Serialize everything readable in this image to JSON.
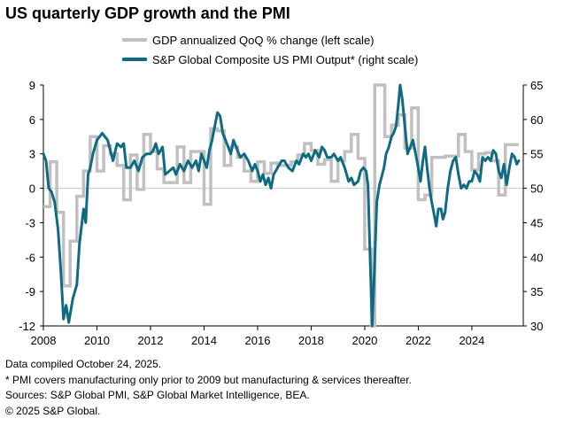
{
  "header": {
    "title": "US quarterly GDP growth and the PMI"
  },
  "footer": {
    "line1": "Data compiled October 24, 2025.",
    "line2": "* PMI covers manufacturing only prior to 2009 but manufacturing & services thereafter.",
    "line3": "Sources: S&P Global PMI, S&P Global Market Intelligence, BEA.",
    "line4": "© 2025 S&P Global."
  },
  "colors": {
    "gdp": "#c0c0c0",
    "pmi": "#0f6b82",
    "axis": "#000000",
    "zero": "#c8c8c8"
  },
  "chart_data": {
    "type": "line",
    "title": "US quarterly GDP growth and the PMI",
    "legend_position": "top",
    "grid": false,
    "x_ticks": [
      "2008",
      "2010",
      "2012",
      "2014",
      "2016",
      "2018",
      "2020",
      "2022",
      "2024"
    ],
    "xlim": [
      2008.0,
      2025.92
    ],
    "y_left": {
      "ticks": [
        "9",
        "6",
        "3",
        "0",
        "-3",
        "-6",
        "-9",
        "-12"
      ],
      "lim": [
        -12,
        9
      ]
    },
    "y_right": {
      "ticks": [
        "65",
        "60",
        "55",
        "50",
        "45",
        "40",
        "35",
        "30"
      ],
      "lim": [
        30,
        65
      ]
    },
    "series": [
      {
        "name": "GDP annualized QoQ % change (left scale)",
        "axis": "left",
        "style": "step",
        "points": [
          [
            2008.0,
            -1.6
          ],
          [
            2008.25,
            2.3
          ],
          [
            2008.5,
            -2.1
          ],
          [
            2008.75,
            -8.5
          ],
          [
            2009.0,
            -4.6
          ],
          [
            2009.25,
            -0.7
          ],
          [
            2009.5,
            1.5
          ],
          [
            2009.75,
            4.5
          ],
          [
            2010.0,
            1.5
          ],
          [
            2010.25,
            3.7
          ],
          [
            2010.5,
            3.0
          ],
          [
            2010.75,
            2.0
          ],
          [
            2011.0,
            -1.0
          ],
          [
            2011.25,
            2.9
          ],
          [
            2011.5,
            -0.1
          ],
          [
            2011.75,
            4.7
          ],
          [
            2012.0,
            3.2
          ],
          [
            2012.25,
            1.7
          ],
          [
            2012.5,
            0.5
          ],
          [
            2012.75,
            0.5
          ],
          [
            2013.0,
            3.6
          ],
          [
            2013.25,
            0.5
          ],
          [
            2013.5,
            3.2
          ],
          [
            2013.75,
            3.2
          ],
          [
            2014.0,
            -1.4
          ],
          [
            2014.25,
            5.2
          ],
          [
            2014.5,
            5.0
          ],
          [
            2014.75,
            2.0
          ],
          [
            2015.0,
            3.6
          ],
          [
            2015.25,
            2.7
          ],
          [
            2015.5,
            1.5
          ],
          [
            2015.75,
            0.6
          ],
          [
            2016.0,
            2.3
          ],
          [
            2016.25,
            1.3
          ],
          [
            2016.5,
            2.2
          ],
          [
            2016.75,
            2.0
          ],
          [
            2017.0,
            2.0
          ],
          [
            2017.25,
            2.3
          ],
          [
            2017.5,
            2.9
          ],
          [
            2017.75,
            3.9
          ],
          [
            2018.0,
            3.3
          ],
          [
            2018.25,
            2.1
          ],
          [
            2018.5,
            2.5
          ],
          [
            2018.75,
            0.6
          ],
          [
            2019.0,
            2.4
          ],
          [
            2019.25,
            3.2
          ],
          [
            2019.5,
            4.7
          ],
          [
            2019.75,
            2.6
          ],
          [
            2020.0,
            -5.3
          ],
          [
            2020.25,
            -12.0
          ],
          [
            2020.375,
            9.0
          ],
          [
            2020.5,
            9.0
          ],
          [
            2020.75,
            4.5
          ],
          [
            2021.0,
            5.5
          ],
          [
            2021.25,
            6.4
          ],
          [
            2021.5,
            3.5
          ],
          [
            2021.75,
            7.0
          ],
          [
            2022.0,
            -1.0
          ],
          [
            2022.25,
            -0.6
          ],
          [
            2022.5,
            2.7
          ],
          [
            2022.75,
            2.7
          ],
          [
            2023.0,
            2.8
          ],
          [
            2023.25,
            2.8
          ],
          [
            2023.5,
            4.7
          ],
          [
            2023.75,
            3.2
          ],
          [
            2024.0,
            1.6
          ],
          [
            2024.25,
            3.0
          ],
          [
            2024.5,
            3.1
          ],
          [
            2024.75,
            2.4
          ],
          [
            2025.0,
            -0.6
          ],
          [
            2025.25,
            3.8
          ],
          [
            2025.5,
            3.8
          ]
        ]
      },
      {
        "name": "S&P Global Composite US PMI Output* (right scale)",
        "axis": "right",
        "style": "line",
        "points": [
          [
            2008.0,
            55.0
          ],
          [
            2008.1,
            54.0
          ],
          [
            2008.2,
            50.0
          ],
          [
            2008.3,
            49.5
          ],
          [
            2008.42,
            48.0
          ],
          [
            2008.55,
            44.0
          ],
          [
            2008.65,
            38.0
          ],
          [
            2008.75,
            31.0
          ],
          [
            2008.85,
            33.0
          ],
          [
            2008.95,
            30.5
          ],
          [
            2009.1,
            34.0
          ],
          [
            2009.25,
            36.0
          ],
          [
            2009.35,
            42.0
          ],
          [
            2009.5,
            47.0
          ],
          [
            2009.58,
            45.0
          ],
          [
            2009.67,
            52.0
          ],
          [
            2009.75,
            53.0
          ],
          [
            2009.85,
            55.0
          ],
          [
            2010.0,
            57.0
          ],
          [
            2010.2,
            58.0
          ],
          [
            2010.4,
            57.0
          ],
          [
            2010.6,
            54.0
          ],
          [
            2010.75,
            56.5
          ],
          [
            2010.9,
            56.0
          ],
          [
            2011.0,
            56.5
          ],
          [
            2011.1,
            53.0
          ],
          [
            2011.25,
            53.0
          ],
          [
            2011.4,
            54.0
          ],
          [
            2011.55,
            52.5
          ],
          [
            2011.7,
            54.5
          ],
          [
            2011.85,
            55.0
          ],
          [
            2012.0,
            55.0
          ],
          [
            2012.1,
            55.5
          ],
          [
            2012.2,
            56.5
          ],
          [
            2012.3,
            55.0
          ],
          [
            2012.45,
            56.0
          ],
          [
            2012.55,
            52.0
          ],
          [
            2012.7,
            52.5
          ],
          [
            2012.85,
            53.0
          ],
          [
            2012.95,
            52.0
          ],
          [
            2013.1,
            53.5
          ],
          [
            2013.25,
            52.5
          ],
          [
            2013.4,
            54.0
          ],
          [
            2013.55,
            53.0
          ],
          [
            2013.7,
            54.0
          ],
          [
            2013.8,
            52.5
          ],
          [
            2013.9,
            55.0
          ],
          [
            2014.0,
            54.0
          ],
          [
            2014.1,
            53.0
          ],
          [
            2014.2,
            55.5
          ],
          [
            2014.3,
            57.0
          ],
          [
            2014.4,
            59.0
          ],
          [
            2014.5,
            61.0
          ],
          [
            2014.6,
            60.5
          ],
          [
            2014.7,
            58.0
          ],
          [
            2014.8,
            57.0
          ],
          [
            2014.9,
            56.0
          ],
          [
            2015.0,
            55.0
          ],
          [
            2015.1,
            57.0
          ],
          [
            2015.2,
            56.0
          ],
          [
            2015.35,
            54.5
          ],
          [
            2015.5,
            55.0
          ],
          [
            2015.65,
            54.0
          ],
          [
            2015.8,
            52.5
          ],
          [
            2015.9,
            53.5
          ],
          [
            2016.0,
            52.5
          ],
          [
            2016.1,
            51.0
          ],
          [
            2016.2,
            52.0
          ],
          [
            2016.3,
            50.5
          ],
          [
            2016.4,
            51.5
          ],
          [
            2016.5,
            50.0
          ],
          [
            2016.6,
            52.0
          ],
          [
            2016.75,
            53.0
          ],
          [
            2016.9,
            54.0
          ],
          [
            2017.0,
            54.0
          ],
          [
            2017.15,
            53.0
          ],
          [
            2017.3,
            52.5
          ],
          [
            2017.45,
            54.0
          ],
          [
            2017.55,
            53.5
          ],
          [
            2017.7,
            55.0
          ],
          [
            2017.8,
            54.5
          ],
          [
            2017.9,
            55.0
          ],
          [
            2018.0,
            54.0
          ],
          [
            2018.15,
            55.5
          ],
          [
            2018.3,
            54.5
          ],
          [
            2018.4,
            56.0
          ],
          [
            2018.5,
            55.5
          ],
          [
            2018.6,
            54.5
          ],
          [
            2018.75,
            54.5
          ],
          [
            2018.85,
            55.0
          ],
          [
            2019.0,
            54.0
          ],
          [
            2019.1,
            54.5
          ],
          [
            2019.25,
            53.0
          ],
          [
            2019.4,
            51.0
          ],
          [
            2019.5,
            51.5
          ],
          [
            2019.6,
            50.5
          ],
          [
            2019.75,
            51.0
          ],
          [
            2019.85,
            52.5
          ],
          [
            2019.95,
            53.0
          ],
          [
            2020.05,
            52.5
          ],
          [
            2020.12,
            50.5
          ],
          [
            2020.2,
            40.0
          ],
          [
            2020.28,
            30.0
          ],
          [
            2020.36,
            38.0
          ],
          [
            2020.45,
            48.0
          ],
          [
            2020.55,
            50.5
          ],
          [
            2020.62,
            51.5
          ],
          [
            2020.72,
            53.0
          ],
          [
            2020.8,
            55.0
          ],
          [
            2020.9,
            56.0
          ],
          [
            2021.0,
            57.5
          ],
          [
            2021.08,
            58.0
          ],
          [
            2021.17,
            59.0
          ],
          [
            2021.25,
            62.0
          ],
          [
            2021.32,
            66.0
          ],
          [
            2021.4,
            63.0
          ],
          [
            2021.5,
            59.0
          ],
          [
            2021.6,
            55.0
          ],
          [
            2021.7,
            56.0
          ],
          [
            2021.8,
            57.0
          ],
          [
            2021.9,
            55.0
          ],
          [
            2022.0,
            53.0
          ],
          [
            2022.08,
            51.0
          ],
          [
            2022.17,
            54.0
          ],
          [
            2022.25,
            56.0
          ],
          [
            2022.33,
            53.0
          ],
          [
            2022.42,
            50.0
          ],
          [
            2022.5,
            48.0
          ],
          [
            2022.6,
            46.0
          ],
          [
            2022.67,
            44.5
          ],
          [
            2022.75,
            47.0
          ],
          [
            2022.85,
            47.0
          ],
          [
            2022.92,
            45.5
          ],
          [
            2023.0,
            46.5
          ],
          [
            2023.1,
            50.0
          ],
          [
            2023.2,
            52.5
          ],
          [
            2023.3,
            54.0
          ],
          [
            2023.4,
            54.5
          ],
          [
            2023.5,
            52.0
          ],
          [
            2023.6,
            50.0
          ],
          [
            2023.7,
            50.5
          ],
          [
            2023.8,
            50.0
          ],
          [
            2023.9,
            51.0
          ],
          [
            2024.0,
            51.0
          ],
          [
            2024.1,
            52.5
          ],
          [
            2024.2,
            52.0
          ],
          [
            2024.3,
            51.0
          ],
          [
            2024.4,
            54.5
          ],
          [
            2024.5,
            54.0
          ],
          [
            2024.6,
            54.5
          ],
          [
            2024.7,
            54.0
          ],
          [
            2024.8,
            55.5
          ],
          [
            2024.9,
            55.0
          ],
          [
            2025.0,
            52.5
          ],
          [
            2025.1,
            51.5
          ],
          [
            2025.2,
            53.5
          ],
          [
            2025.3,
            50.5
          ],
          [
            2025.4,
            53.0
          ],
          [
            2025.5,
            55.0
          ],
          [
            2025.6,
            54.5
          ],
          [
            2025.68,
            53.5
          ],
          [
            2025.75,
            54.0
          ]
        ]
      }
    ]
  }
}
